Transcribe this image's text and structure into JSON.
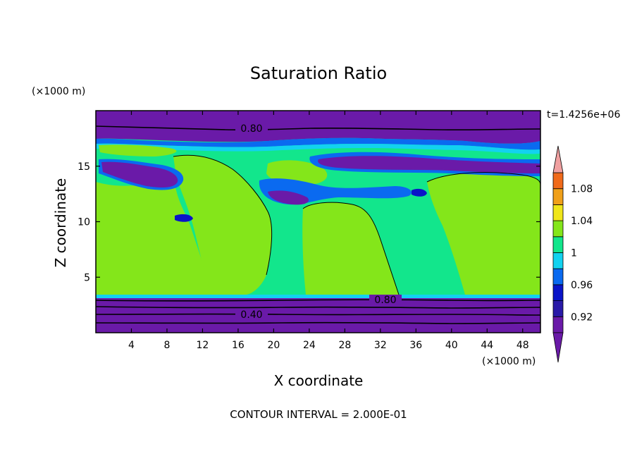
{
  "chart_data": {
    "type": "contour",
    "title": "Saturation Ratio",
    "xlabel": "X coordinate",
    "ylabel": "Z coordinate",
    "x_unit": "(×1000 m)",
    "y_unit": "(×1000 m)",
    "time_label": "t=1.4256e+06",
    "footer": "CONTOUR INTERVAL = 2.000E-01",
    "xlim": [
      0,
      50
    ],
    "ylim": [
      0,
      20
    ],
    "x_ticks": [
      4,
      8,
      12,
      16,
      20,
      24,
      28,
      32,
      36,
      40,
      44,
      48
    ],
    "y_ticks": [
      5,
      10,
      15
    ],
    "contour_labels": [
      {
        "text": "0.80",
        "x": 18.0,
        "y": 18.2
      },
      {
        "text": "0.80",
        "x": 32.0,
        "y": 3.0
      },
      {
        "text": "0.40",
        "x": 17.0,
        "y": 1.8
      }
    ],
    "colorbar": {
      "levels": [
        0.9,
        0.92,
        0.94,
        0.96,
        0.98,
        1.0,
        1.02,
        1.04,
        1.06,
        1.08,
        1.1
      ],
      "labels": [
        "0.92",
        "0.96",
        "1",
        "1.04",
        "1.08"
      ],
      "colors": [
        "#6a1aa8",
        "#2a1aa8",
        "#0a14c8",
        "#0a6af0",
        "#12d2f0",
        "#12e68c",
        "#84e61a",
        "#f0e61a",
        "#f0a01a",
        "#f06a1a",
        "#f02a1a"
      ],
      "over_color": "#f0a0a0",
      "under_color": "#6a1aa8"
    },
    "colors": {
      "purple": "#6a1aa8",
      "darkblue": "#0a14c8",
      "blue": "#0a6af0",
      "cyan": "#12d2f0",
      "teal": "#12e68c",
      "lime": "#84e61a"
    }
  }
}
